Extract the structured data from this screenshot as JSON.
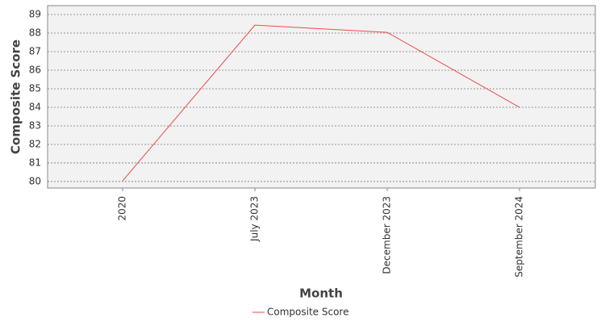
{
  "chart_data": {
    "type": "line",
    "x_label": "Month",
    "y_label": "Composite Score",
    "categories": [
      "2020",
      "July 2023",
      "December 2023",
      "September 2024"
    ],
    "series": [
      {
        "name": "Composite Score",
        "color": "#f04a4a",
        "values": [
          80.04,
          88.43,
          88.04,
          84.0
        ]
      }
    ],
    "ylim": [
      79.65,
      89.48
    ],
    "yticks": [
      80,
      81,
      82,
      83,
      84,
      85,
      86,
      87,
      88,
      89
    ],
    "grid": true
  }
}
